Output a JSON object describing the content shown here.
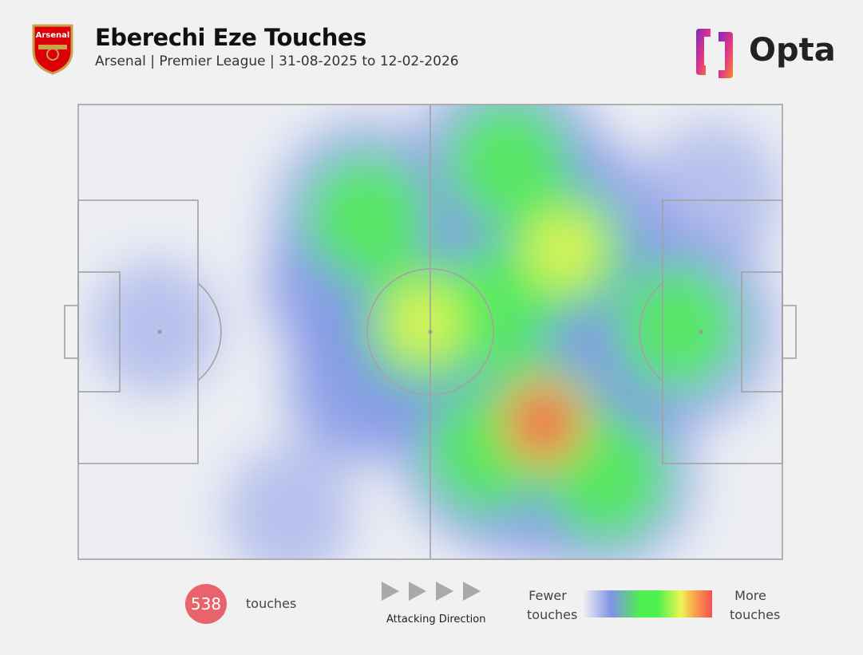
{
  "header": {
    "title": "Eberechi Eze Touches",
    "subtitle": "Arsenal | Premier League | 31-08-2025 to 12-02-2026",
    "club_crest_text": "Arsenal",
    "brand": "Opta"
  },
  "footer": {
    "touch_count": "538",
    "touch_label": "touches",
    "direction_label": "Attacking Direction",
    "scale_low": "Fewer touches",
    "scale_high": "More touches"
  },
  "colors": {
    "badge": "#e8636c",
    "low": "#8093e6",
    "mid": "#4ef04e",
    "high_mid": "#eef552",
    "high": "#f55050"
  },
  "chart_data": {
    "type": "heatmap",
    "pitch_units": "opta 0-100",
    "attacking_direction": "left-to-right",
    "total_touches": 538,
    "hotspots": [
      {
        "x": 66,
        "y": 70,
        "intensity": 1.0
      },
      {
        "x": 69,
        "y": 32,
        "intensity": 0.78
      },
      {
        "x": 49,
        "y": 48,
        "intensity": 0.72
      },
      {
        "x": 41,
        "y": 25,
        "intensity": 0.55
      },
      {
        "x": 61,
        "y": 13,
        "intensity": 0.55
      },
      {
        "x": 85,
        "y": 49,
        "intensity": 0.6
      },
      {
        "x": 59,
        "y": 45,
        "intensity": 0.5
      },
      {
        "x": 75,
        "y": 82,
        "intensity": 0.5
      },
      {
        "x": 58,
        "y": 76,
        "intensity": 0.5
      },
      {
        "x": 40,
        "y": 62,
        "intensity": 0.35
      },
      {
        "x": 37,
        "y": 40,
        "intensity": 0.35
      },
      {
        "x": 11,
        "y": 49,
        "intensity": 0.2
      },
      {
        "x": 30,
        "y": 90,
        "intensity": 0.2
      },
      {
        "x": 90,
        "y": 20,
        "intensity": 0.25
      }
    ]
  }
}
